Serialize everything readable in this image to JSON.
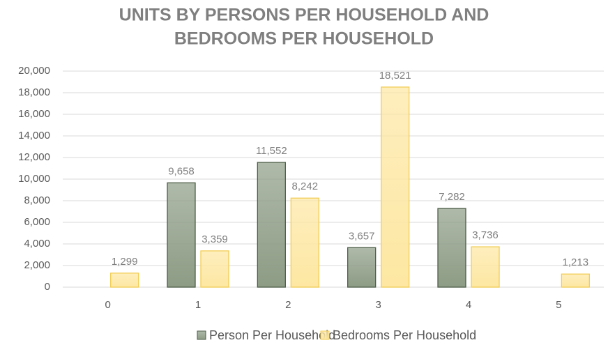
{
  "chart_data": {
    "type": "bar",
    "title": [
      "UNITS BY PERSONS PER HOUSEHOLD AND",
      "BEDROOMS PER HOUSEHOLD"
    ],
    "categories": [
      "0",
      "1",
      "2",
      "3",
      "4",
      "5"
    ],
    "series": [
      {
        "name": "Person Per Household",
        "color": "#8d9c85",
        "stroke": "#4e5e48",
        "values": [
          null,
          9658,
          11552,
          3657,
          7282,
          null
        ],
        "value_labels": [
          null,
          "9,658",
          "11,552",
          "3,657",
          "7,282",
          null
        ]
      },
      {
        "name": "Bedrooms Per Household",
        "color": "#fde7a2",
        "stroke": "#f2cd55",
        "values": [
          1299,
          3359,
          8242,
          18521,
          3736,
          1213
        ],
        "value_labels": [
          "1,299",
          "3,359",
          "8,242",
          "18,521",
          "3,736",
          "1,213"
        ]
      }
    ],
    "ylim": [
      0,
      20000
    ],
    "yticks": [
      0,
      {
        "value": 2000,
        "label": "2,000"
      },
      {
        "value": 4000,
        "label": "4,000"
      },
      {
        "value": 6000,
        "label": "6,000"
      },
      {
        "value": 8000,
        "label": "8,000"
      },
      {
        "value": 10000,
        "label": "10,000"
      },
      {
        "value": 12000,
        "label": "12,000"
      },
      {
        "value": 14000,
        "label": "14,000"
      },
      {
        "value": 16000,
        "label": "16,000"
      },
      {
        "value": 18000,
        "label": "18,000"
      },
      {
        "value": 20000,
        "label": "20,000"
      }
    ],
    "grid": true,
    "legend": "bottom"
  }
}
